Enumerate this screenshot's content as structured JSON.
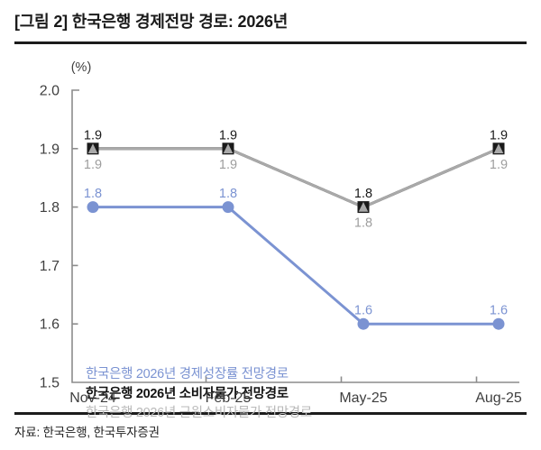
{
  "header": {
    "title": "[그림 2] 한국은행 경제전망 경로: 2026년"
  },
  "footer": {
    "source": "자료: 한국은행, 한국투자증권"
  },
  "chart_data": {
    "type": "line",
    "title": "[그림 2] 한국은행 경제전망 경로: 2026년",
    "unit_label": "(%)",
    "xlabel": "",
    "ylabel": "(%)",
    "categories": [
      "Nov-24",
      "Feb-25",
      "May-25",
      "Aug-25"
    ],
    "ylim": [
      1.5,
      2.0
    ],
    "yticks": [
      2.0,
      1.9,
      1.8,
      1.7,
      1.6,
      1.5
    ],
    "grid": false,
    "legend_position": "inside-bottom-left",
    "series": [
      {
        "name": "한국은행 2026년 경제성장률 전망경로",
        "values": [
          1.8,
          1.8,
          1.6,
          1.6
        ],
        "color": "#7b93d2",
        "marker": "circle",
        "label_pos": "above",
        "label_color": "#7b93d2",
        "legend_color": "#7b93d2",
        "legend_bold": false
      },
      {
        "name": "한국은행 2026년 소비자물가 전망경로",
        "values": [
          1.9,
          1.9,
          1.8,
          1.9
        ],
        "color": "#1a1a1a",
        "marker": "square",
        "label_pos": "above",
        "label_color": "#1a1a1a",
        "legend_color": "#111111",
        "legend_bold": true
      },
      {
        "name": "한국은행 2026년 근원소비자물가 전망경로",
        "values": [
          1.9,
          1.9,
          1.8,
          1.9
        ],
        "color": "#a9a9a9",
        "marker": "triangle",
        "label_pos": "below",
        "label_color": "#9e9e9e",
        "legend_color": "#b9b9b9",
        "legend_bold": false
      }
    ],
    "draw_order": [
      1,
      2,
      0
    ],
    "axis_color": "#8c8c8c",
    "tick_label_color": "#3f3f3f"
  }
}
